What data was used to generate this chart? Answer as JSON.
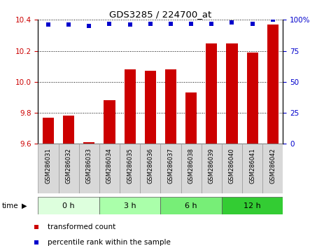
{
  "title": "GDS3285 / 224700_at",
  "samples": [
    "GSM286031",
    "GSM286032",
    "GSM286033",
    "GSM286034",
    "GSM286035",
    "GSM286036",
    "GSM286037",
    "GSM286038",
    "GSM286039",
    "GSM286040",
    "GSM286041",
    "GSM286042"
  ],
  "bar_values": [
    9.77,
    9.78,
    9.61,
    9.88,
    10.08,
    10.07,
    10.08,
    9.93,
    10.25,
    10.25,
    10.19,
    10.37
  ],
  "percentile_values": [
    96,
    96,
    95,
    97,
    96,
    97,
    97,
    97,
    97,
    98,
    97,
    100
  ],
  "ylim": [
    9.6,
    10.4
  ],
  "y_ticks": [
    9.6,
    9.8,
    10.0,
    10.2,
    10.4
  ],
  "right_ylim": [
    0,
    100
  ],
  "right_yticks": [
    0,
    25,
    50,
    75,
    100
  ],
  "bar_color": "#cc0000",
  "dot_color": "#0000cc",
  "grid_color": "#000000",
  "left_tick_color": "#cc0000",
  "right_tick_color": "#0000cc",
  "time_groups": [
    {
      "label": "0 h",
      "start": 0,
      "end": 3,
      "color": "#ddffdd"
    },
    {
      "label": "3 h",
      "start": 3,
      "end": 6,
      "color": "#aaffaa"
    },
    {
      "label": "6 h",
      "start": 6,
      "end": 9,
      "color": "#77ee77"
    },
    {
      "label": "12 h",
      "start": 9,
      "end": 12,
      "color": "#33cc33"
    }
  ],
  "legend_bar_label": "transformed count",
  "legend_dot_label": "percentile rank within the sample",
  "bar_baseline": 9.6,
  "right_label_100": "100%"
}
